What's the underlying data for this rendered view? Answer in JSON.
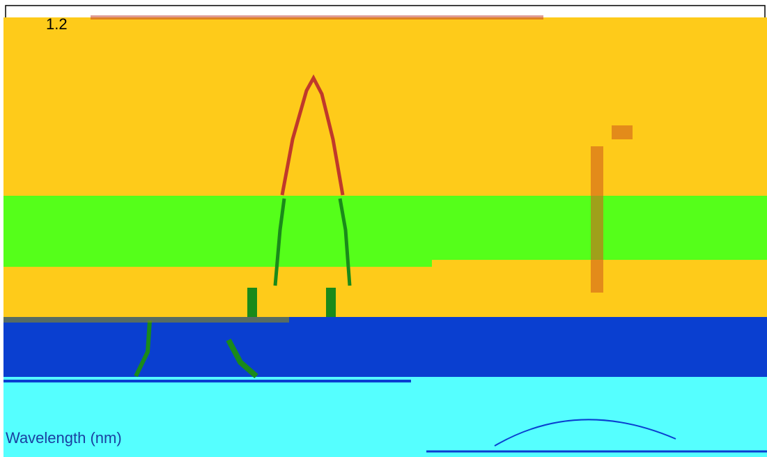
{
  "axis": {
    "y_top_label": "1.2",
    "x_title": "Wavelength (nm)"
  }
}
